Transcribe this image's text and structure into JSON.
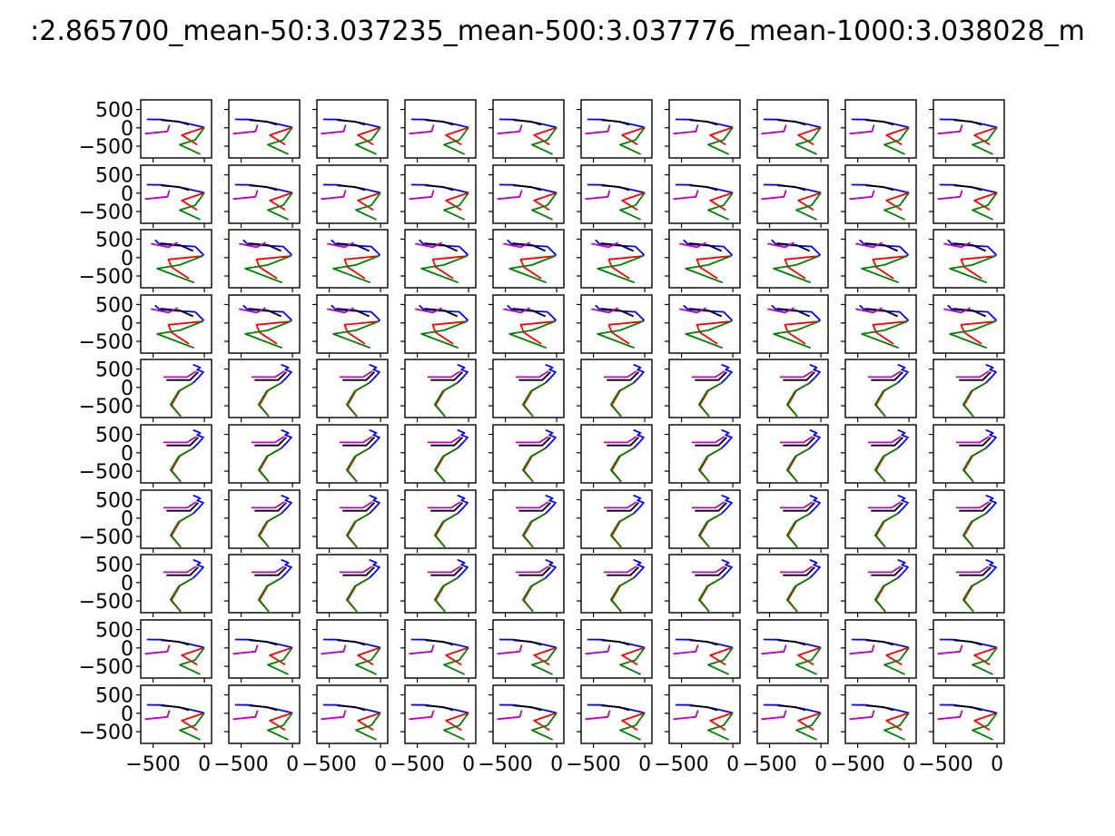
{
  "figure": {
    "title": ":2.865700_mean-50:3.037235_mean-500:3.037776_mean-1000:3.038028_m"
  },
  "chart_data": {
    "type": "line",
    "title": ":2.865700_mean-50:3.037235_mean-500:3.037776_mean-1000:3.038028_m",
    "xlabel": "",
    "ylabel": "",
    "grid": false,
    "layout": {
      "rows": 10,
      "cols": 10,
      "shared_axes": true
    },
    "xlim": [
      -620,
      70
    ],
    "ylim": [
      -820,
      760
    ],
    "x_ticks": [
      -500,
      0
    ],
    "x_tick_labels": [
      "−500",
      "0"
    ],
    "y_ticks": [
      -500,
      0,
      500
    ],
    "y_tick_labels": [
      "−500",
      "0",
      "500"
    ],
    "series_colors": {
      "blue": "#0000ff",
      "black": "#000000",
      "red": "#ff0000",
      "green": "#008000",
      "magenta": "#bf00bf"
    },
    "poses": {
      "A": [
        {
          "color": "blue",
          "points": [
            [
              -560,
              230
            ],
            [
              -420,
              225
            ],
            [
              -200,
              140
            ],
            [
              0,
              10
            ]
          ]
        },
        {
          "color": "black",
          "points": [
            [
              -420,
              210
            ],
            [
              -250,
              170
            ],
            [
              -150,
              80
            ]
          ]
        },
        {
          "color": "magenta",
          "points": [
            [
              -580,
              -160
            ],
            [
              -360,
              -100
            ],
            [
              -340,
              80
            ]
          ]
        },
        {
          "color": "red",
          "points": [
            [
              0,
              10
            ],
            [
              -220,
              -200
            ],
            [
              -70,
              -460
            ]
          ]
        },
        {
          "color": "green",
          "points": [
            [
              0,
              10
            ],
            [
              -90,
              -330
            ],
            [
              -240,
              -460
            ],
            [
              -40,
              -720
            ]
          ]
        }
      ],
      "B": [
        {
          "color": "blue",
          "points": [
            [
              -480,
              480
            ],
            [
              -440,
              370
            ],
            [
              -280,
              330
            ],
            [
              -90,
              300
            ],
            [
              -10,
              80
            ],
            [
              -20,
              40
            ]
          ]
        },
        {
          "color": "black",
          "points": [
            [
              -430,
              390
            ],
            [
              -240,
              340
            ],
            [
              -110,
              180
            ]
          ]
        },
        {
          "color": "magenta",
          "points": [
            [
              -520,
              380
            ],
            [
              -350,
              280
            ],
            [
              -260,
              410
            ]
          ]
        },
        {
          "color": "red",
          "points": [
            [
              -20,
              40
            ],
            [
              -350,
              -50
            ],
            [
              -320,
              -260
            ],
            [
              -150,
              -570
            ]
          ]
        },
        {
          "color": "green",
          "points": [
            [
              -20,
              40
            ],
            [
              -240,
              -200
            ],
            [
              -460,
              -300
            ],
            [
              -100,
              -680
            ]
          ]
        }
      ],
      "C": [
        {
          "color": "blue",
          "points": [
            [
              -110,
              620
            ],
            [
              -40,
              540
            ],
            [
              -70,
              480
            ],
            [
              -10,
              420
            ],
            [
              -60,
              260
            ],
            [
              -110,
              120
            ]
          ]
        },
        {
          "color": "black",
          "points": [
            [
              -370,
              200
            ],
            [
              -140,
              200
            ],
            [
              -60,
              420
            ]
          ]
        },
        {
          "color": "magenta",
          "points": [
            [
              -400,
              280
            ],
            [
              -170,
              280
            ],
            [
              -80,
              440
            ]
          ]
        },
        {
          "color": "red",
          "points": [
            [
              -110,
              120
            ],
            [
              -240,
              -90
            ],
            [
              -320,
              -480
            ],
            [
              -230,
              -790
            ]
          ]
        },
        {
          "color": "green",
          "points": [
            [
              -110,
              120
            ],
            [
              -250,
              -100
            ],
            [
              -330,
              -470
            ],
            [
              -230,
              -790
            ]
          ]
        }
      ]
    },
    "row_pose": [
      "A",
      "A",
      "B",
      "B",
      "C",
      "C",
      "C",
      "C",
      "A",
      "A"
    ]
  }
}
